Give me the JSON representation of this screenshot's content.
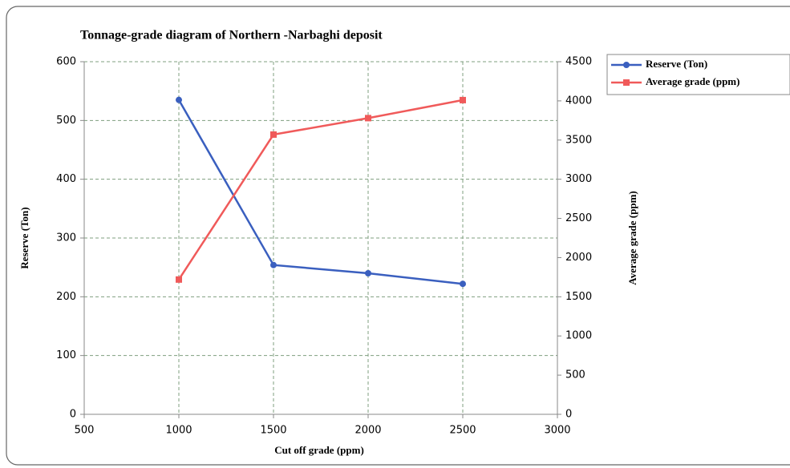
{
  "chart_data": {
    "type": "line",
    "title": "Tonnage-grade diagram of Northern -Narbaghi deposit",
    "x_label": "Cut off grade (ppm)",
    "y_label": "Reserve (Ton)",
    "y2_label": "Average grade (ppm)",
    "x": [
      1000,
      1500,
      2000,
      2500
    ],
    "series": [
      {
        "name": "Reserve (Ton)",
        "color": "#3a5fbf",
        "marker": "circle",
        "values": [
          535,
          254,
          240,
          222
        ]
      },
      {
        "name": "Average grade (ppm)",
        "color": "#f05a5a",
        "marker": "square",
        "axis": "y2",
        "values": [
          1720,
          3570,
          3780,
          4010
        ]
      }
    ],
    "xlim": [
      500,
      3000
    ],
    "xticks": [
      500,
      1000,
      1500,
      2000,
      2500,
      3000
    ],
    "ylim": [
      0,
      600
    ],
    "yticks": [
      0,
      100,
      200,
      300,
      400,
      500,
      600
    ],
    "y2lim": [
      0,
      4500
    ],
    "y2ticks": [
      0,
      500,
      1000,
      1500,
      2000,
      2500,
      3000,
      3500,
      4000,
      4500
    ],
    "grid": true,
    "legend": "upper right"
  }
}
